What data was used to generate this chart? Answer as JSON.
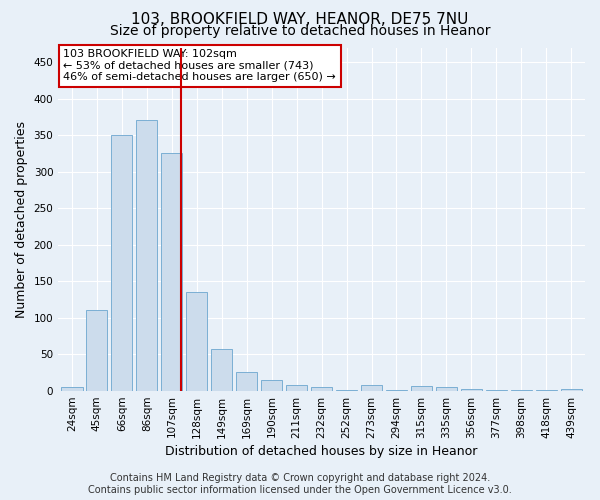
{
  "title_line1": "103, BROOKFIELD WAY, HEANOR, DE75 7NU",
  "title_line2": "Size of property relative to detached houses in Heanor",
  "xlabel": "Distribution of detached houses by size in Heanor",
  "ylabel": "Number of detached properties",
  "categories": [
    "24sqm",
    "45sqm",
    "66sqm",
    "86sqm",
    "107sqm",
    "128sqm",
    "149sqm",
    "169sqm",
    "190sqm",
    "211sqm",
    "232sqm",
    "252sqm",
    "273sqm",
    "294sqm",
    "315sqm",
    "335sqm",
    "356sqm",
    "377sqm",
    "398sqm",
    "418sqm",
    "439sqm"
  ],
  "values": [
    5,
    110,
    350,
    370,
    325,
    135,
    57,
    25,
    15,
    7,
    5,
    1,
    8,
    1,
    6,
    5,
    2,
    1,
    1,
    1,
    2
  ],
  "bar_color": "#ccdcec",
  "bar_edge_color": "#7bafd4",
  "vline_color": "#cc0000",
  "vline_x_index": 4,
  "annotation_text": "103 BROOKFIELD WAY: 102sqm\n← 53% of detached houses are smaller (743)\n46% of semi-detached houses are larger (650) →",
  "annotation_box_facecolor": "white",
  "annotation_box_edgecolor": "#cc0000",
  "ylim": [
    0,
    470
  ],
  "yticks": [
    0,
    50,
    100,
    150,
    200,
    250,
    300,
    350,
    400,
    450
  ],
  "footer_line1": "Contains HM Land Registry data © Crown copyright and database right 2024.",
  "footer_line2": "Contains public sector information licensed under the Open Government Licence v3.0.",
  "bg_color": "#e8f0f8",
  "plot_bg_color": "#e8f0f8",
  "grid_color": "white",
  "title_fontsize": 11,
  "subtitle_fontsize": 10,
  "label_fontsize": 9,
  "tick_fontsize": 7.5,
  "annotation_fontsize": 8,
  "footer_fontsize": 7
}
